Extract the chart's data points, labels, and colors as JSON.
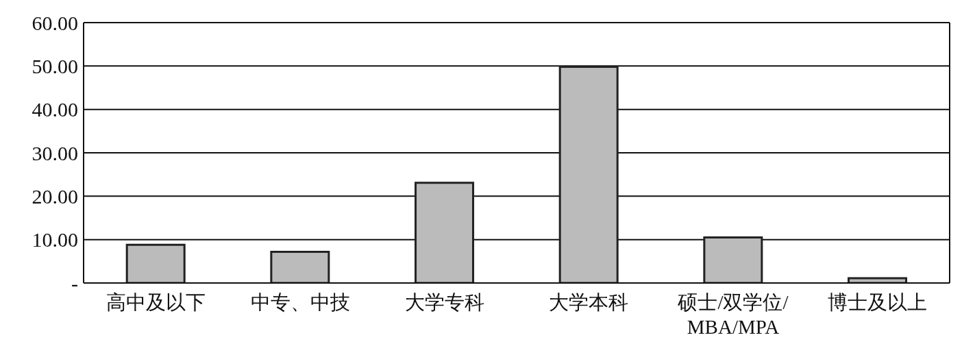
{
  "chart_data": {
    "type": "bar",
    "categories": [
      "高中及以下",
      "中专、中技",
      "大学专科",
      "大学本科",
      "硕士/双学位/\nMBA/MPA",
      "博士及以上"
    ],
    "values": [
      8.8,
      7.2,
      23.1,
      49.8,
      10.5,
      1.1
    ],
    "color": "#bcbbbc",
    "ylim": [
      0,
      60
    ],
    "yticks": [
      {
        "value": 0,
        "label": "-"
      },
      {
        "value": 10,
        "label": "10.00"
      },
      {
        "value": 20,
        "label": "20.00"
      },
      {
        "value": 30,
        "label": "30.00"
      },
      {
        "value": 40,
        "label": "40.00"
      },
      {
        "value": 50,
        "label": "50.00"
      },
      {
        "value": 60,
        "label": "60.00"
      }
    ],
    "grid": "y"
  }
}
